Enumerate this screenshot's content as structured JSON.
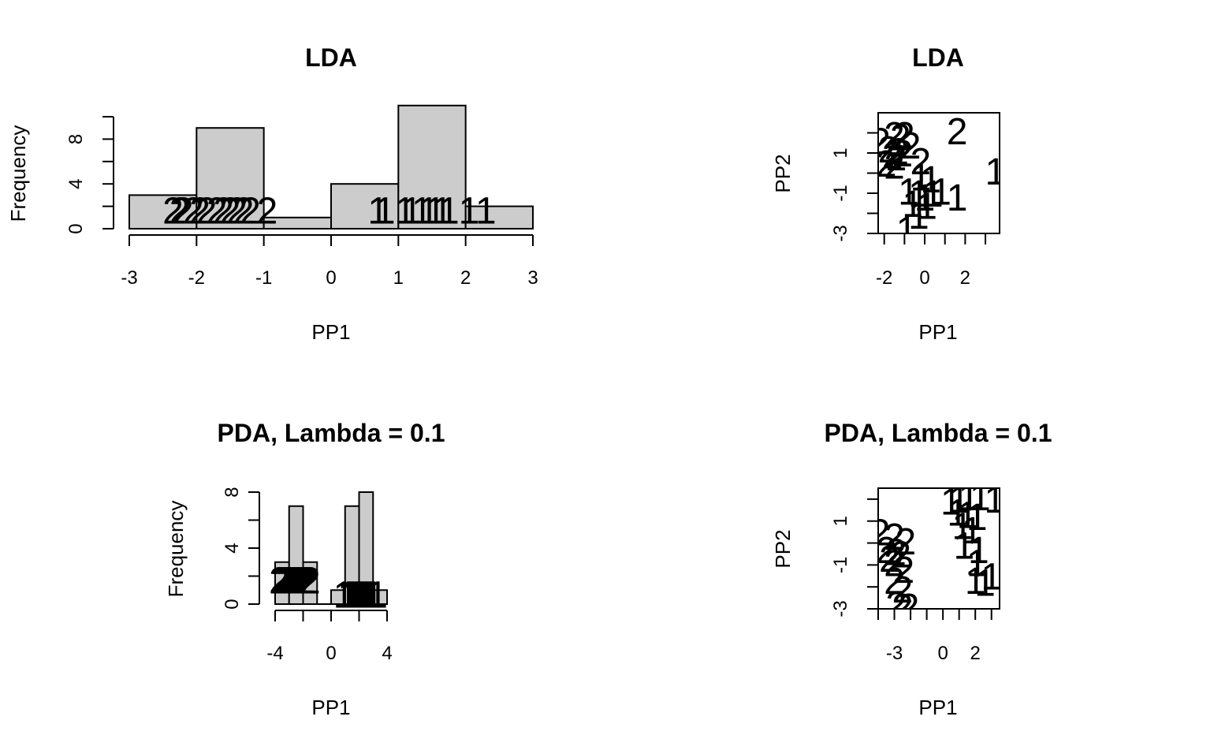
{
  "chart_data": [
    {
      "type": "histogram",
      "title": "LDA",
      "xlabel": "PP1",
      "ylabel": "Frequency",
      "xlim": [
        -3,
        3
      ],
      "ylim": [
        0,
        10
      ],
      "x_ticks": [
        -3,
        -2,
        -1,
        0,
        1,
        2,
        3
      ],
      "y_ticks": [
        0,
        4,
        8
      ],
      "bar_fill": "#cccccc",
      "bins": [
        {
          "start": -3,
          "end": -2,
          "count": 3
        },
        {
          "start": -2,
          "end": -1,
          "count": 9
        },
        {
          "start": -1,
          "end": 0,
          "count": 1
        },
        {
          "start": 0,
          "end": 1,
          "count": 4
        },
        {
          "start": 1,
          "end": 2,
          "count": 11
        },
        {
          "start": 2,
          "end": 3,
          "count": 2
        }
      ],
      "point_labels": [
        {
          "label": "2",
          "x": -2.35,
          "y": 2
        },
        {
          "label": "2",
          "x": -2.25,
          "y": 2
        },
        {
          "label": "2",
          "x": -2.2,
          "y": 2
        },
        {
          "label": "2",
          "x": -2.05,
          "y": 2
        },
        {
          "label": "2",
          "x": -1.95,
          "y": 2
        },
        {
          "label": "2",
          "x": -1.85,
          "y": 2
        },
        {
          "label": "2",
          "x": -1.7,
          "y": 2
        },
        {
          "label": "2",
          "x": -1.6,
          "y": 2
        },
        {
          "label": "2",
          "x": -1.5,
          "y": 2
        },
        {
          "label": "2",
          "x": -1.4,
          "y": 2
        },
        {
          "label": "2",
          "x": -1.3,
          "y": 2
        },
        {
          "label": "2",
          "x": -1.2,
          "y": 2
        },
        {
          "label": "2",
          "x": -0.95,
          "y": 2
        },
        {
          "label": "1",
          "x": 0.7,
          "y": 2
        },
        {
          "label": "1",
          "x": 0.8,
          "y": 2
        },
        {
          "label": "1",
          "x": 1.1,
          "y": 2
        },
        {
          "label": "1",
          "x": 1.2,
          "y": 2
        },
        {
          "label": "1",
          "x": 1.35,
          "y": 2
        },
        {
          "label": "1",
          "x": 1.45,
          "y": 2
        },
        {
          "label": "1",
          "x": 1.55,
          "y": 2
        },
        {
          "label": "1",
          "x": 1.65,
          "y": 2
        },
        {
          "label": "1",
          "x": 1.75,
          "y": 2
        },
        {
          "label": "1",
          "x": 2.05,
          "y": 2
        },
        {
          "label": "1",
          "x": 2.3,
          "y": 2
        }
      ]
    },
    {
      "type": "scatter",
      "title": "LDA",
      "xlabel": "PP1",
      "ylabel": "PP2",
      "xlim": [
        -2.3,
        3.7
      ],
      "ylim": [
        -3,
        3
      ],
      "x_ticks": [
        -2,
        0,
        2
      ],
      "x_minor_ticks": [
        -1,
        1,
        3
      ],
      "y_ticks": [
        -3,
        -1,
        1
      ],
      "y_minor_ticks": [
        -2,
        0,
        2
      ],
      "points": [
        {
          "label": "2",
          "x": -2.2,
          "y": 1.6
        },
        {
          "label": "2",
          "x": -1.5,
          "y": 1.9
        },
        {
          "label": "2",
          "x": -1.2,
          "y": 1.8
        },
        {
          "label": "2",
          "x": -1.0,
          "y": 1.9
        },
        {
          "label": "2",
          "x": -0.7,
          "y": 1.4
        },
        {
          "label": "2",
          "x": -1.8,
          "y": 1.2
        },
        {
          "label": "2",
          "x": -1.6,
          "y": 0.9
        },
        {
          "label": "2",
          "x": -1.4,
          "y": 0.8
        },
        {
          "label": "2",
          "x": -1.3,
          "y": 1.1
        },
        {
          "label": "2",
          "x": -1.1,
          "y": 1.0
        },
        {
          "label": "2",
          "x": -1.9,
          "y": 0.5
        },
        {
          "label": "2",
          "x": -1.5,
          "y": 0.4
        },
        {
          "label": "2",
          "x": -0.2,
          "y": 0.6
        },
        {
          "label": "2",
          "x": 1.6,
          "y": 2.1
        },
        {
          "label": "1",
          "x": -0.2,
          "y": -0.2
        },
        {
          "label": "1",
          "x": 0.3,
          "y": -0.3
        },
        {
          "label": "1",
          "x": -0.8,
          "y": -0.9
        },
        {
          "label": "1",
          "x": -0.3,
          "y": -1.0
        },
        {
          "label": "1",
          "x": 0.0,
          "y": -1.2
        },
        {
          "label": "1",
          "x": 0.4,
          "y": -1.0
        },
        {
          "label": "1",
          "x": 0.8,
          "y": -0.9
        },
        {
          "label": "1",
          "x": -0.6,
          "y": -1.5
        },
        {
          "label": "1",
          "x": 0.1,
          "y": -1.6
        },
        {
          "label": "1",
          "x": 1.6,
          "y": -1.2
        },
        {
          "label": "1",
          "x": -0.3,
          "y": -2.1
        },
        {
          "label": "1",
          "x": -0.9,
          "y": -2.8
        },
        {
          "label": "1",
          "x": 3.5,
          "y": 0.1
        }
      ]
    },
    {
      "type": "histogram",
      "title": "PDA, Lambda = 0.1",
      "xlabel": "PP1",
      "ylabel": "Frequency",
      "xlim": [
        -4,
        4
      ],
      "ylim": [
        0,
        8
      ],
      "x_ticks": [
        -4,
        0,
        4
      ],
      "x_minor_ticks": [
        -2,
        2
      ],
      "y_ticks": [
        0,
        4,
        8
      ],
      "y_minor_ticks": [
        2,
        6
      ],
      "bar_fill": "#cccccc",
      "bins": [
        {
          "start": -4,
          "end": -3,
          "count": 3
        },
        {
          "start": -3,
          "end": -2,
          "count": 7
        },
        {
          "start": -2,
          "end": -1,
          "count": 3
        },
        {
          "start": -1,
          "end": 0,
          "count": 0
        },
        {
          "start": 0,
          "end": 1,
          "count": 1
        },
        {
          "start": 1,
          "end": 2,
          "count": 7
        },
        {
          "start": 2,
          "end": 3,
          "count": 8
        },
        {
          "start": 3,
          "end": 4,
          "count": 1
        }
      ],
      "point_labels": [
        {
          "label": "2",
          "x": -3.7,
          "y": 2
        },
        {
          "label": "2",
          "x": -3.5,
          "y": 2
        },
        {
          "label": "2",
          "x": -3.3,
          "y": 2
        },
        {
          "label": "2",
          "x": -3.1,
          "y": 2
        },
        {
          "label": "2",
          "x": -2.9,
          "y": 2
        },
        {
          "label": "2",
          "x": -2.7,
          "y": 2
        },
        {
          "label": "2",
          "x": -2.5,
          "y": 2
        },
        {
          "label": "2",
          "x": -2.3,
          "y": 2
        },
        {
          "label": "2",
          "x": -2.1,
          "y": 2
        },
        {
          "label": "2",
          "x": -1.9,
          "y": 2
        },
        {
          "label": "2",
          "x": -1.7,
          "y": 2
        },
        {
          "label": "2",
          "x": -1.5,
          "y": 2
        },
        {
          "label": "1",
          "x": 0.9,
          "y": 1
        },
        {
          "label": "1",
          "x": 1.2,
          "y": 1
        },
        {
          "label": "1",
          "x": 1.4,
          "y": 1
        },
        {
          "label": "1",
          "x": 1.6,
          "y": 1
        },
        {
          "label": "1",
          "x": 1.8,
          "y": 1
        },
        {
          "label": "1",
          "x": 2.0,
          "y": 1
        },
        {
          "label": "1",
          "x": 2.2,
          "y": 1
        },
        {
          "label": "1",
          "x": 2.4,
          "y": 1
        },
        {
          "label": "1",
          "x": 2.6,
          "y": 1
        },
        {
          "label": "1",
          "x": 2.8,
          "y": 1
        },
        {
          "label": "1",
          "x": 3.0,
          "y": 1
        },
        {
          "label": "1",
          "x": 3.3,
          "y": 1
        }
      ]
    },
    {
      "type": "scatter",
      "title": "PDA, Lambda = 0.1",
      "xlabel": "PP1",
      "ylabel": "PP2",
      "xlim": [
        -4,
        3.5
      ],
      "ylim": [
        -3,
        2.5
      ],
      "x_ticks": [
        -3,
        0,
        2
      ],
      "x_minor_ticks": [
        -4,
        -2,
        -1,
        1,
        3
      ],
      "y_ticks": [
        -3,
        -1,
        1
      ],
      "y_minor_ticks": [
        -2,
        0,
        2
      ],
      "points": [
        {
          "label": "2",
          "x": -3.9,
          "y": 0.5
        },
        {
          "label": "2",
          "x": -3.0,
          "y": 0.3
        },
        {
          "label": "2",
          "x": -2.3,
          "y": 0.1
        },
        {
          "label": "2",
          "x": -3.5,
          "y": -0.3
        },
        {
          "label": "2",
          "x": -2.9,
          "y": -0.4
        },
        {
          "label": "2",
          "x": -2.6,
          "y": -0.5
        },
        {
          "label": "2",
          "x": -3.3,
          "y": -0.7
        },
        {
          "label": "2",
          "x": -3.0,
          "y": -0.9
        },
        {
          "label": "2",
          "x": -2.4,
          "y": -1.2
        },
        {
          "label": "2",
          "x": -3.0,
          "y": -1.7
        },
        {
          "label": "2",
          "x": -2.5,
          "y": -2.1
        },
        {
          "label": "2",
          "x": -2.9,
          "y": -2.8
        },
        {
          "label": "2",
          "x": -2.5,
          "y": -2.9
        },
        {
          "label": "2",
          "x": -2.1,
          "y": -2.9
        },
        {
          "label": "1",
          "x": 0.5,
          "y": 1.9
        },
        {
          "label": "1",
          "x": 1.0,
          "y": 2.0
        },
        {
          "label": "1",
          "x": 1.6,
          "y": 2.1
        },
        {
          "label": "1",
          "x": 2.3,
          "y": 2.1
        },
        {
          "label": "1",
          "x": 3.2,
          "y": 2.0
        },
        {
          "label": "1",
          "x": 0.9,
          "y": 1.4
        },
        {
          "label": "1",
          "x": 1.5,
          "y": 1.3
        },
        {
          "label": "1",
          "x": 2.1,
          "y": 1.2
        },
        {
          "label": "1",
          "x": 1.2,
          "y": 0.8
        },
        {
          "label": "1",
          "x": 1.8,
          "y": 0.6
        },
        {
          "label": "1",
          "x": 1.3,
          "y": -0.1
        },
        {
          "label": "1",
          "x": 2.2,
          "y": -0.3
        },
        {
          "label": "1",
          "x": 2.1,
          "y": -0.9
        },
        {
          "label": "1",
          "x": 2.0,
          "y": -1.7
        },
        {
          "label": "1",
          "x": 3.0,
          "y": -1.5
        },
        {
          "label": "1",
          "x": 2.6,
          "y": -1.8
        }
      ]
    }
  ]
}
